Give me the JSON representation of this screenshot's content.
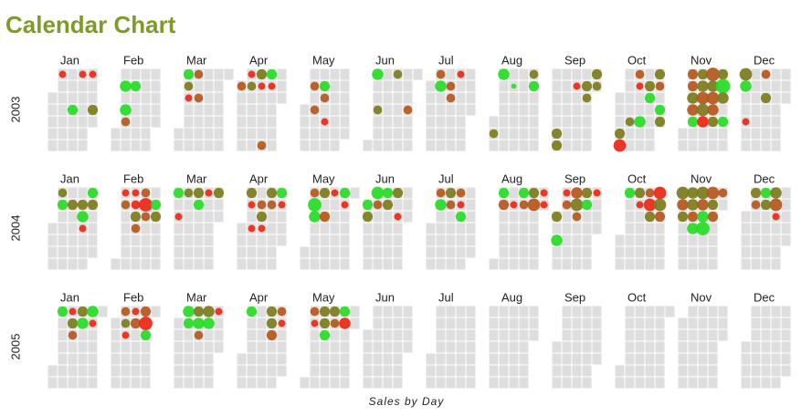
{
  "chart_data": {
    "type": "calendar",
    "title": "Calendar Chart",
    "xlabel": "Sales by Day",
    "years": [
      "2003",
      "2004",
      "2005"
    ],
    "months": [
      "Jan",
      "Feb",
      "Mar",
      "Apr",
      "May",
      "Jun",
      "Jul",
      "Aug",
      "Sep",
      "Oct",
      "Nov",
      "Dec"
    ],
    "dates": [
      "2003-01-06",
      "2003-01-20",
      "2003-01-27",
      "2003-01-16",
      "2003-01-30",
      "2003-02-04",
      "2003-02-06",
      "2003-02-07",
      "2003-02-11",
      "2003-03-03",
      "2003-03-04",
      "2003-03-05",
      "2003-03-10",
      "2003-03-12",
      "2003-04-01",
      "2003-04-07",
      "2003-04-08",
      "2003-04-14",
      "2003-04-20",
      "2003-04-21",
      "2003-04-15",
      "2003-04-22",
      "2003-05-06",
      "2003-05-13",
      "2003-05-14",
      "2003-05-08",
      "2003-05-16",
      "2003-06-02",
      "2003-06-05",
      "2003-06-16",
      "2003-06-26",
      "2003-07-07",
      "2003-07-08",
      "2003-07-21",
      "2003-07-15",
      "2003-07-16",
      "2003-08-02",
      "2003-08-04",
      "2003-08-12",
      "2003-08-25",
      "2003-08-26",
      "2003-09-06",
      "2003-09-07",
      "2003-09-16",
      "2003-09-23",
      "2003-09-24",
      "2003-09-29",
      "2003-09-30",
      "2003-10-04",
      "2003-10-05",
      "2003-10-10",
      "2003-10-13",
      "2003-10-17",
      "2003-10-14",
      "2003-10-21",
      "2003-10-22",
      "2003-10-27",
      "2003-10-28",
      "2003-10-30",
      "2003-10-31",
      "2003-11-03",
      "2003-11-04",
      "2003-11-05",
      "2003-11-06",
      "2003-11-07",
      "2003-11-10",
      "2003-11-11",
      "2003-11-12",
      "2003-11-13",
      "2003-11-14",
      "2003-11-17",
      "2003-11-18",
      "2003-11-19",
      "2003-11-20",
      "2003-11-21",
      "2003-11-24",
      "2003-11-25",
      "2003-11-26",
      "2003-11-28",
      "2003-12-01",
      "2003-12-02",
      "2003-12-05",
      "2003-12-15",
      "2003-12-17",
      "2004-01-05",
      "2004-01-06",
      "2004-01-13",
      "2004-01-20",
      "2004-01-21",
      "2004-01-26",
      "2004-01-27",
      "2004-01-22",
      "2004-02-02",
      "2004-02-03",
      "2004-02-09",
      "2004-02-10",
      "2004-02-11",
      "2004-02-16",
      "2004-02-17",
      "2004-02-18",
      "2004-02-24",
      "2004-02-25",
      "2004-02-12",
      "2004-03-01",
      "2004-03-03",
      "2004-03-08",
      "2004-03-15",
      "2004-03-16",
      "2004-03-22",
      "2004-03-29",
      "2004-04-05",
      "2004-04-06",
      "2004-04-13",
      "2004-04-14",
      "2004-04-19",
      "2004-04-20",
      "2004-04-26",
      "2004-04-27",
      "2004-04-08",
      "2004-04-15",
      "2004-05-03",
      "2004-05-04",
      "2004-05-05",
      "2004-05-10",
      "2004-05-12",
      "2004-05-17",
      "2004-05-24",
      "2004-05-25",
      "2004-06-01",
      "2004-06-02",
      "2004-06-07",
      "2004-06-08",
      "2004-06-14",
      "2004-06-15",
      "2004-06-21",
      "2004-06-23",
      "2004-07-05",
      "2004-07-06",
      "2004-07-12",
      "2004-07-13",
      "2004-07-19",
      "2004-07-20",
      "2004-07-21",
      "2004-08-02",
      "2004-08-03",
      "2004-08-10",
      "2004-08-16",
      "2004-08-17",
      "2004-08-23",
      "2004-08-24",
      "2004-08-30",
      "2004-08-31",
      "2004-09-06",
      "2004-09-07",
      "2004-09-13",
      "2004-09-14",
      "2004-09-15",
      "2004-09-20",
      "2004-09-21",
      "2004-09-27",
      "2004-09-01",
      "2004-09-03",
      "2004-10-04",
      "2004-10-11",
      "2004-10-12",
      "2004-10-18",
      "2004-10-19",
      "2004-10-20",
      "2004-10-25",
      "2004-10-26",
      "2004-10-27",
      "2004-11-01",
      "2004-11-02",
      "2004-11-03",
      "2004-11-08",
      "2004-11-09",
      "2004-11-10",
      "2004-11-11",
      "2004-11-15",
      "2004-11-16",
      "2004-11-17",
      "2004-11-18",
      "2004-11-22",
      "2004-11-23",
      "2004-11-24",
      "2004-11-29",
      "2004-12-06",
      "2004-12-07",
      "2004-12-13",
      "2004-12-14",
      "2004-12-20",
      "2004-12-21",
      "2004-12-22",
      "2005-01-03",
      "2005-01-10",
      "2005-01-11",
      "2005-01-17",
      "2005-01-18",
      "2005-01-24",
      "2005-01-25",
      "2005-01-12",
      "2005-02-07",
      "2005-02-08",
      "2005-02-14",
      "2005-02-15",
      "2005-02-21",
      "2005-02-22",
      "2005-02-23",
      "2005-02-09",
      "2005-03-07",
      "2005-03-08",
      "2005-03-14",
      "2005-03-15",
      "2005-03-21",
      "2005-03-22",
      "2005-03-28",
      "2005-03-16",
      "2005-04-04",
      "2005-04-18",
      "2005-04-19",
      "2005-04-25",
      "2005-04-26",
      "2005-04-20",
      "2005-05-02",
      "2005-05-03",
      "2005-05-09",
      "2005-05-10",
      "2005-05-11",
      "2005-05-16",
      "2005-05-17",
      "2005-05-23",
      "2005-05-24"
    ],
    "values": [
      2,
      2,
      2,
      4,
      4,
      5,
      5,
      3,
      4,
      4,
      3,
      2,
      3,
      3,
      3,
      2,
      3,
      4,
      3,
      4,
      2,
      2,
      3,
      4,
      3,
      3,
      2,
      5,
      3,
      3,
      3,
      3,
      5,
      2,
      3,
      3,
      3,
      5,
      1,
      3,
      4,
      4,
      4,
      2,
      4,
      3,
      4,
      3,
      4,
      6,
      3,
      3,
      5,
      2,
      4,
      4,
      4,
      3,
      4,
      4,
      4,
      4,
      5,
      5,
      4,
      4,
      5,
      6,
      6,
      5,
      7,
      5,
      6,
      5,
      4,
      4,
      8,
      5,
      4,
      6,
      5,
      2,
      3,
      4,
      3,
      4,
      4,
      4,
      5,
      4,
      4,
      2,
      2,
      3,
      2,
      3,
      4,
      3,
      7,
      3,
      4,
      4,
      3,
      4,
      2,
      3,
      4,
      4,
      2,
      4,
      4,
      2,
      3,
      4,
      4,
      3,
      4,
      2,
      2,
      2,
      3,
      7,
      5,
      4,
      4,
      2,
      4,
      2,
      4,
      4,
      6,
      3,
      4,
      4,
      4,
      2,
      3,
      5,
      4,
      3,
      3,
      2,
      4,
      4,
      4,
      2,
      4,
      3,
      4,
      6,
      2,
      2,
      2,
      3,
      5,
      6,
      3,
      4,
      4,
      2,
      4,
      5,
      4,
      4,
      2,
      3,
      6,
      4,
      6,
      6,
      4,
      6,
      5,
      4,
      5,
      5,
      4,
      5,
      6,
      5,
      5,
      7,
      6,
      4,
      4,
      3,
      4,
      3,
      4,
      4,
      5,
      6,
      2,
      4,
      2,
      4,
      4,
      5,
      5,
      2,
      3,
      3,
      3,
      2,
      4,
      4,
      7,
      4,
      2,
      5,
      4,
      4,
      5,
      5,
      5,
      2,
      3,
      4,
      4,
      4,
      3,
      2,
      4,
      3,
      2,
      4,
      4,
      4,
      4,
      3,
      4,
      5
    ],
    "colors": [
      "#ee2211",
      "#ee2211",
      "#ee2211",
      "#22dd22",
      "#7a7a1a",
      "#22dd22",
      "#22dd22",
      "#b5541a",
      "#22dd22",
      "#22dd22",
      "#7a7a1a",
      "#ee2211",
      "#b5541a",
      "#b5541a",
      "#b5541a",
      "#ee2211",
      "#7a7a1a",
      "#7a7a1a",
      "#b5541a",
      "#22dd22",
      "#ee2211",
      "#ee2211",
      "#b5541a",
      "#22dd22",
      "#b5541a",
      "#b5541a",
      "#ee2211",
      "#22dd22",
      "#7a7a1a",
      "#7a7a1a",
      "#b5541a",
      "#b5541a",
      "#22dd22",
      "#ee2211",
      "#b5541a",
      "#b5541a",
      "#7a7a1a",
      "#22dd22",
      "#22dd22",
      "#7a7a1a",
      "#22dd22",
      "#7a7a1a",
      "#7a7a1a",
      "#ee2211",
      "#7a7a1a",
      "#7a7a1a",
      "#7a7a1a",
      "#7a7a1a",
      "#7a7a1a",
      "#ee2211",
      "#7a7a1a",
      "#b5541a",
      "#22dd22",
      "#ee2211",
      "#7a7a1a",
      "#22dd22",
      "#7a7a1a",
      "#b5541a",
      "#22dd22",
      "#7a7a1a",
      "#b5541a",
      "#b5541a",
      "#7a7a1a",
      "#b5541a",
      "#22dd22",
      "#7a7a1a",
      "#7a7a1a",
      "#b5541a",
      "#7a7a1a",
      "#ee2211",
      "#b5541a",
      "#7a7a1a",
      "#b5541a",
      "#b5541a",
      "#7a7a1a",
      "#7a7a1a",
      "#22dd22",
      "#7a7a1a",
      "#22dd22",
      "#7a7a1a",
      "#22dd22",
      "#ee2211",
      "#b5541a",
      "#7a7a1a",
      "#7a7a1a",
      "#22dd22",
      "#7a7a1a",
      "#7a7a1a",
      "#22dd22",
      "#22dd22",
      "#7a7a1a",
      "#ee2211",
      "#ee2211",
      "#b5541a",
      "#ee2211",
      "#ee2211",
      "#7a7a1a",
      "#b5541a",
      "#ee2211",
      "#b5541a",
      "#22dd22",
      "#7a7a1a",
      "#b5541a",
      "#22dd22",
      "#ee2211",
      "#7a7a1a",
      "#7a7a1a",
      "#22dd22",
      "#ee2211",
      "#7a7a1a",
      "#7a7a1a",
      "#ee2211",
      "#b5541a",
      "#7a7a1a",
      "#7a7a1a",
      "#b5541a",
      "#22dd22",
      "#ee2211",
      "#ee2211",
      "#ee2211",
      "#b5541a",
      "#22dd22",
      "#22dd22",
      "#7a7a1a",
      "#b5541a",
      "#ee2211",
      "#22dd22",
      "#ee2211",
      "#22dd22",
      "#7a7a1a",
      "#22dd22",
      "#b5541a",
      "#22dd22",
      "#7a7a1a",
      "#7a7a1a",
      "#ee2211",
      "#b5541a",
      "#22dd22",
      "#7a7a1a",
      "#b5541a",
      "#b5541a",
      "#ee2211",
      "#22dd22",
      "#22dd22",
      "#b5541a",
      "#ee2211",
      "#22dd22",
      "#b5541a",
      "#7a7a1a",
      "#b5541a",
      "#ee2211",
      "#ee2211",
      "#ee2211",
      "#b5541a",
      "#b5541a",
      "#7a7a1a",
      "#b5541a",
      "#7a7a1a",
      "#22dd22",
      "#ee2211",
      "#7a7a1a",
      "#22dd22",
      "#22dd22",
      "#7a7a1a",
      "#ee2211",
      "#b5541a",
      "#ee2211",
      "#7a7a1a",
      "#ee2211",
      "#7a7a1a",
      "#b5541a",
      "#7a7a1a",
      "#b5541a",
      "#7a7a1a",
      "#7a7a1a",
      "#7a7a1a",
      "#b5541a",
      "#22dd22",
      "#7a7a1a",
      "#b5541a",
      "#22dd22",
      "#22dd22",
      "#b5541a",
      "#7a7a1a",
      "#b5541a",
      "#b5541a",
      "#7a7a1a",
      "#b5541a",
      "#22dd22",
      "#7a7a1a",
      "#7a7a1a",
      "#b5541a",
      "#ee2211",
      "#22dd22",
      "#ee2211",
      "#7a7a1a",
      "#7a7a1a",
      "#22dd22",
      "#22dd22",
      "#ee2211",
      "#b5541a",
      "#b5541a",
      "#7a7a1a",
      "#ee2211",
      "#b5541a",
      "#b5541a",
      "#ee2211",
      "#22dd22",
      "#ee2211",
      "#22dd22",
      "#22dd22",
      "#7a7a1a",
      "#22dd22",
      "#7a7a1a",
      "#22dd22",
      "#ee2211",
      "#b5541a",
      "#22dd22",
      "#7a7a1a",
      "#7a7a1a",
      "#b5541a",
      "#ee2211",
      "#b5541a",
      "#b5541a",
      "#ee2211",
      "#7a7a1a",
      "#7a7a1a",
      "#22dd22",
      "#7a7a1a",
      "#b5541a",
      "#22dd22",
      "#ee2211"
    ]
  }
}
